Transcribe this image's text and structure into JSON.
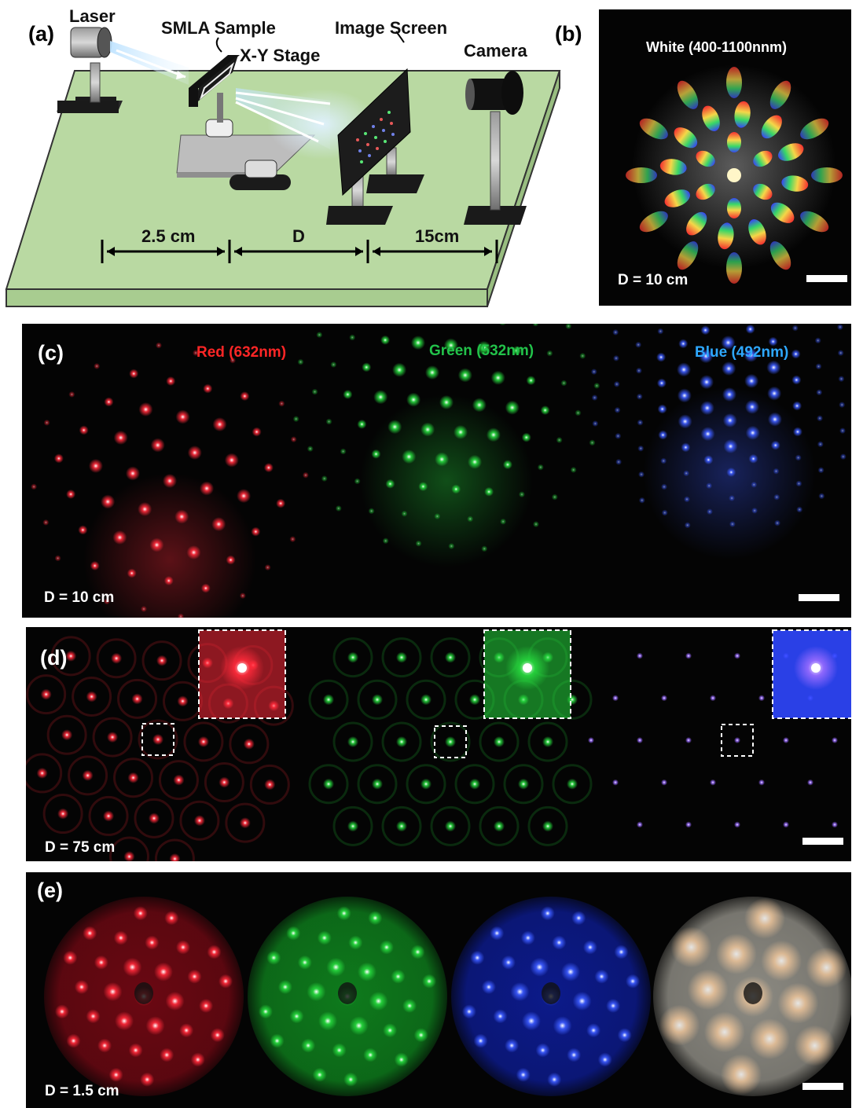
{
  "panel_a": {
    "label": "(a)",
    "laser": "Laser",
    "smla_sample": "SMLA Sample",
    "xy_stage": "X-Y Stage",
    "image_screen": "Image Screen",
    "camera": "Camera",
    "dist_1": "2.5 cm",
    "dist_2": "D",
    "dist_3": "15cm"
  },
  "panel_b": {
    "label": "(b)",
    "title": "White (400-1100nnm)",
    "distance": "D =  10 cm"
  },
  "panel_c": {
    "label": "(c)",
    "red": "Red (632nm)",
    "green": "Green (532nm)",
    "blue": "Blue (492nm)",
    "distance": "D =  10 cm"
  },
  "panel_d": {
    "label": "(d)",
    "distance": "D =  75 cm"
  },
  "panel_e": {
    "label": "(e)",
    "distance": "D =  1.5 cm"
  },
  "colors": {
    "red": "#ff2a3a",
    "green": "#27d83e",
    "blue": "#3d5cff",
    "violet": "#9a6cff",
    "red_caption": "#ff2626",
    "green_caption": "#22c24a",
    "blue_caption": "#2ea8ff",
    "table_green": "#b9d9a2"
  }
}
